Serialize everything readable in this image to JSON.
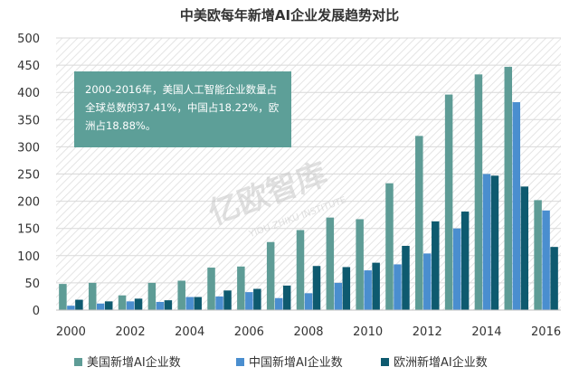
{
  "colors": {
    "us": "#5e9c96",
    "cn": "#4a8ecf",
    "eu": "#0e5a6f",
    "grid": "#d9d9d9",
    "hatch": "#e6e6e6",
    "annot_bg": "#5d9f98",
    "text": "#333333"
  },
  "watermark": {
    "text_cn": "亿欧智库",
    "text_en": "YIOU ZHIKU INSTITUTE"
  },
  "chart_data": {
    "type": "bar",
    "title": "中美欧每年新增AI企业发展趋势对比",
    "xlabel": "",
    "ylabel": "",
    "ylim": [
      0,
      500
    ],
    "yticks": [
      0,
      50,
      100,
      150,
      200,
      250,
      300,
      350,
      400,
      450,
      500
    ],
    "categories": [
      "2000",
      "2001",
      "2002",
      "2003",
      "2004",
      "2005",
      "2006",
      "2007",
      "2008",
      "2009",
      "2010",
      "2011",
      "2012",
      "2013",
      "2014",
      "2015",
      "2016"
    ],
    "x_tick_labels": [
      "2000",
      "2002",
      "2004",
      "2006",
      "2008",
      "2010",
      "2012",
      "2014",
      "2016"
    ],
    "series": [
      {
        "name": "美国新增AI企业数",
        "color_key": "us",
        "values": [
          48,
          50,
          27,
          50,
          54,
          78,
          80,
          125,
          147,
          170,
          167,
          233,
          320,
          396,
          433,
          447,
          202
        ]
      },
      {
        "name": "中国新增AI企业数",
        "color_key": "cn",
        "values": [
          8,
          12,
          16,
          15,
          24,
          25,
          33,
          22,
          31,
          50,
          73,
          84,
          104,
          150,
          250,
          382,
          183
        ]
      },
      {
        "name": "欧洲新增AI企业数",
        "color_key": "eu",
        "values": [
          19,
          16,
          21,
          18,
          24,
          36,
          39,
          45,
          81,
          79,
          87,
          118,
          163,
          181,
          247,
          227,
          116
        ]
      }
    ],
    "legend_position": "bottom",
    "annotation": "2000-2016年，美国人工智能企业数量占全球总数的37.41%，中国占18.22%，欧洲占18.88%。"
  }
}
